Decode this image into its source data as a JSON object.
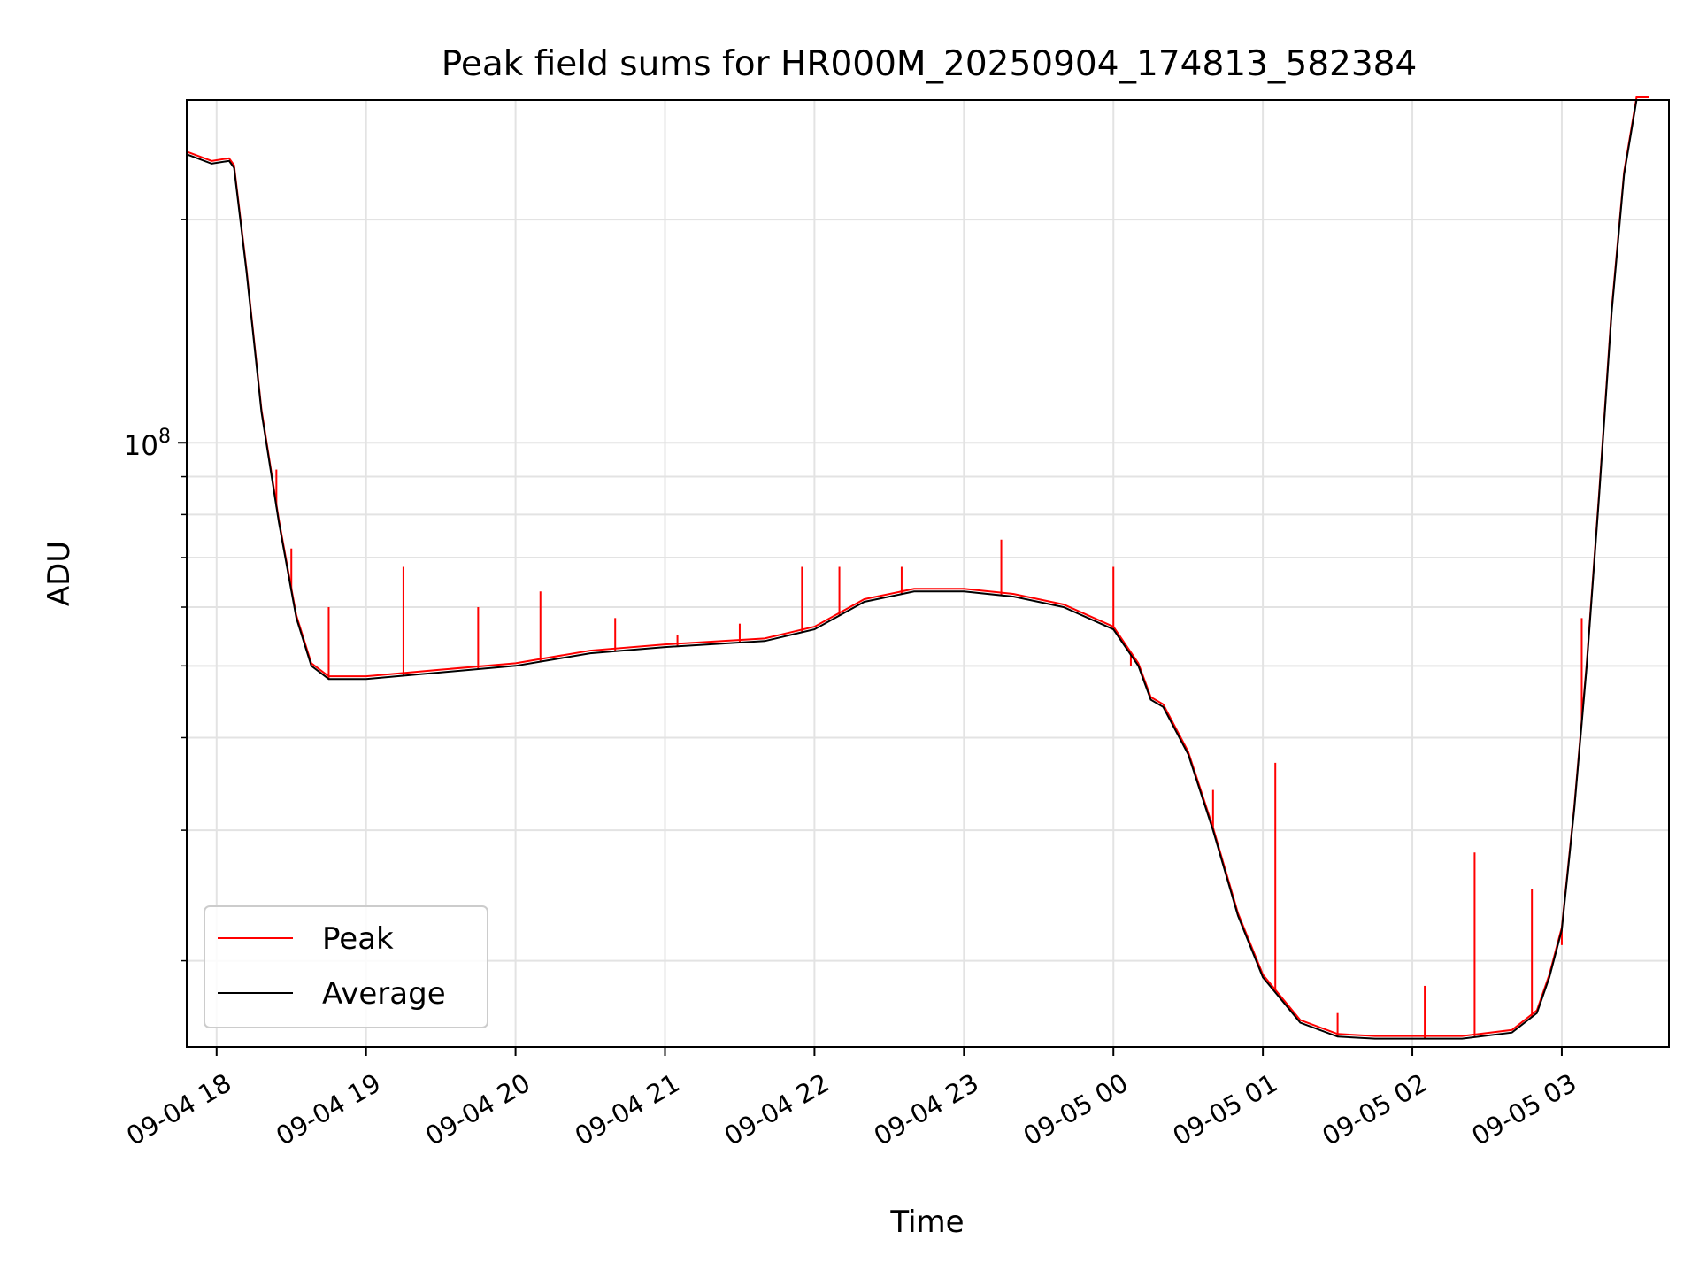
{
  "chart_data": {
    "type": "line",
    "title": "Peak field sums for HR000M_20250904_174813_582384",
    "xlabel": "Time",
    "ylabel": "ADU",
    "x_type": "datetime",
    "xlim": [
      "2025-09-04 17:48",
      "2025-09-05 03:43"
    ],
    "ylim": [
      15300000,
      290000000
    ],
    "y_scale": "log",
    "grid": true,
    "legend": "lower-left",
    "x_ticks": [
      {
        "value": "2025-09-04 18:00",
        "label": "09-04 18"
      },
      {
        "value": "2025-09-04 19:00",
        "label": "09-04 19"
      },
      {
        "value": "2025-09-04 20:00",
        "label": "09-04 20"
      },
      {
        "value": "2025-09-04 21:00",
        "label": "09-04 21"
      },
      {
        "value": "2025-09-04 22:00",
        "label": "09-04 22"
      },
      {
        "value": "2025-09-04 23:00",
        "label": "09-04 23"
      },
      {
        "value": "2025-09-05 00:00",
        "label": "09-05 00"
      },
      {
        "value": "2025-09-05 01:00",
        "label": "09-05 01"
      },
      {
        "value": "2025-09-05 02:00",
        "label": "09-05 02"
      },
      {
        "value": "2025-09-05 03:00",
        "label": "09-05 03"
      }
    ],
    "y_major_ticks": [
      {
        "value": 100000000,
        "base": "10",
        "exp": "8"
      }
    ],
    "y_minor_ticks": [
      20000000,
      30000000,
      40000000,
      50000000,
      60000000,
      70000000,
      80000000,
      90000000,
      200000000
    ],
    "series": [
      {
        "name": "Average",
        "color": "#000000",
        "x": [
          "2025-09-04 17:48",
          "2025-09-04 17:58",
          "2025-09-04 18:05",
          "2025-09-04 18:07",
          "2025-09-04 18:12",
          "2025-09-04 18:18",
          "2025-09-04 18:25",
          "2025-09-04 18:32",
          "2025-09-04 18:38",
          "2025-09-04 18:45",
          "2025-09-04 19:00",
          "2025-09-04 19:30",
          "2025-09-04 20:00",
          "2025-09-04 20:30",
          "2025-09-04 21:00",
          "2025-09-04 21:40",
          "2025-09-04 22:00",
          "2025-09-04 22:20",
          "2025-09-04 22:40",
          "2025-09-04 23:00",
          "2025-09-04 23:20",
          "2025-09-04 23:40",
          "2025-09-05 00:00",
          "2025-09-05 00:10",
          "2025-09-05 00:15",
          "2025-09-05 00:20",
          "2025-09-05 00:30",
          "2025-09-05 00:40",
          "2025-09-05 00:50",
          "2025-09-05 01:00",
          "2025-09-05 01:15",
          "2025-09-05 01:30",
          "2025-09-05 01:45",
          "2025-09-05 02:00",
          "2025-09-05 02:20",
          "2025-09-05 02:40",
          "2025-09-05 02:50",
          "2025-09-05 02:55",
          "2025-09-05 03:00",
          "2025-09-05 03:05",
          "2025-09-05 03:10",
          "2025-09-05 03:15",
          "2025-09-05 03:20",
          "2025-09-05 03:25",
          "2025-09-05 03:30",
          "2025-09-05 03:35"
        ],
        "values": [
          245000000,
          238000000,
          240000000,
          235000000,
          170000000,
          110000000,
          78000000,
          58000000,
          50000000,
          48000000,
          48000000,
          49000000,
          50000000,
          52000000,
          53000000,
          54000000,
          56000000,
          61000000,
          63000000,
          63000000,
          62000000,
          60000000,
          56000000,
          50000000,
          45000000,
          44000000,
          38000000,
          30000000,
          23000000,
          19000000,
          16500000,
          15800000,
          15700000,
          15700000,
          15700000,
          16000000,
          17000000,
          19000000,
          22000000,
          32000000,
          50000000,
          85000000,
          150000000,
          230000000,
          290000000,
          290000000
        ]
      },
      {
        "name": "Peak",
        "color": "#ff0000",
        "x": [
          "2025-09-04 18:24",
          "2025-09-04 18:30",
          "2025-09-04 18:45",
          "2025-09-04 19:15",
          "2025-09-04 19:45",
          "2025-09-04 20:10",
          "2025-09-04 20:40",
          "2025-09-04 21:05",
          "2025-09-04 21:30",
          "2025-09-04 21:55",
          "2025-09-04 22:10",
          "2025-09-04 22:35",
          "2025-09-04 23:15",
          "2025-09-05 00:00",
          "2025-09-05 00:07",
          "2025-09-05 00:40",
          "2025-09-05 01:05",
          "2025-09-05 01:30",
          "2025-09-05 02:05",
          "2025-09-05 02:25",
          "2025-09-05 02:48",
          "2025-09-05 03:00",
          "2025-09-05 03:08"
        ],
        "values": [
          92000000,
          72000000,
          60000000,
          68000000,
          60000000,
          63000000,
          58000000,
          55000000,
          57000000,
          68000000,
          68000000,
          68000000,
          74000000,
          68000000,
          50000000,
          34000000,
          37000000,
          17000000,
          18500000,
          28000000,
          25000000,
          21000000,
          58000000
        ]
      }
    ]
  }
}
